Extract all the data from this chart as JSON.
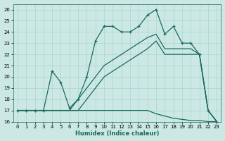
{
  "xlabel": "Humidex (Indice chaleur)",
  "xlim": [
    -0.5,
    23.5
  ],
  "ylim": [
    16,
    26.5
  ],
  "xticks": [
    0,
    1,
    2,
    3,
    4,
    5,
    6,
    7,
    8,
    9,
    10,
    11,
    12,
    13,
    14,
    15,
    16,
    17,
    18,
    19,
    20,
    21,
    22,
    23
  ],
  "yticks": [
    16,
    17,
    18,
    19,
    20,
    21,
    22,
    23,
    24,
    25,
    26
  ],
  "background_color": "#cce8e4",
  "line_color": "#1a6b5a",
  "grid_color": "#aad4ce",
  "line_jagged_x": [
    0,
    1,
    2,
    3,
    4,
    5,
    6,
    7,
    8,
    9,
    10,
    11,
    12,
    13,
    14,
    15,
    16,
    17,
    18,
    19,
    20,
    21,
    22,
    23
  ],
  "line_jagged_y": [
    17,
    17,
    17,
    17,
    20.5,
    19.5,
    17.2,
    18.0,
    20.0,
    23.2,
    24.5,
    24.5,
    24.0,
    24.0,
    24.5,
    25.5,
    26.0,
    23.8,
    24.5,
    23.0,
    23.0,
    22.0,
    17.0,
    16.0
  ],
  "line_upper_x": [
    0,
    1,
    2,
    3,
    4,
    5,
    6,
    7,
    8,
    9,
    10,
    11,
    12,
    13,
    14,
    15,
    16,
    17,
    18,
    19,
    20,
    21,
    22,
    23
  ],
  "line_upper_y": [
    17,
    17,
    17,
    17,
    17,
    17,
    17,
    18,
    19,
    20,
    21,
    21.5,
    22,
    22.5,
    23,
    23.5,
    23.8,
    22.5,
    22.5,
    22.5,
    22.5,
    22.0,
    17.0,
    16.0
  ],
  "line_lower_x": [
    0,
    1,
    2,
    3,
    4,
    5,
    6,
    7,
    8,
    9,
    10,
    11,
    12,
    13,
    14,
    15,
    16,
    17,
    18,
    19,
    20,
    21,
    22,
    23
  ],
  "line_lower_y": [
    17,
    17,
    17,
    17,
    17,
    17,
    17,
    17,
    18,
    19,
    20,
    20.5,
    21,
    21.5,
    22,
    22.5,
    23.2,
    22.0,
    22.0,
    22.0,
    22.0,
    22.0,
    17.0,
    16.0
  ],
  "line_flat_x": [
    0,
    1,
    2,
    3,
    4,
    5,
    6,
    7,
    8,
    9,
    10,
    11,
    12,
    13,
    14,
    15,
    16,
    17,
    18,
    19,
    20,
    21,
    22,
    23
  ],
  "line_flat_y": [
    17,
    17,
    17,
    17,
    17,
    17,
    17,
    17,
    17,
    17,
    17,
    17,
    17,
    17,
    17,
    17,
    16.7,
    16.5,
    16.3,
    16.2,
    16.1,
    16.1,
    16.0,
    16.0
  ]
}
